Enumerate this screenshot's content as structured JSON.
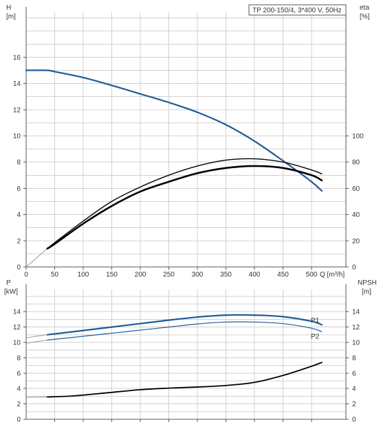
{
  "colors": {
    "blue": "#1f5a96",
    "black": "#000000",
    "grid": "#d0d0d0",
    "light_blue": "#6fa0cc"
  },
  "chart_data": [
    {
      "type": "line",
      "title": "TP 200-150/4, 3*400 V, 50Hz",
      "xlabel": "Q [m³/h]",
      "ylabel_left": [
        "H",
        "[m]"
      ],
      "ylabel_right": [
        "eta",
        "[%]"
      ],
      "xlim": [
        0,
        550
      ],
      "ylim_left": [
        0,
        20
      ],
      "ylim_right": [
        0,
        200
      ],
      "x_ticks": [
        "0",
        "50",
        "100",
        "150",
        "200",
        "250",
        "300",
        "350",
        "400",
        "450",
        "500"
      ],
      "y_left_ticks": [
        "0",
        "2",
        "4",
        "6",
        "8",
        "10",
        "12",
        "14",
        "16"
      ],
      "y_right_ticks": [
        "0",
        "20",
        "40",
        "60",
        "80",
        "100"
      ],
      "grid": true,
      "series": [
        {
          "axis": "left",
          "color": "#1f5a96",
          "width": 2.2,
          "points": [
            [
              0,
              15.0
            ],
            [
              37,
              15.0
            ],
            [
              50,
              14.9
            ],
            [
              100,
              14.45
            ],
            [
              150,
              13.85
            ],
            [
              200,
              13.2
            ],
            [
              250,
              12.55
            ],
            [
              300,
              11.8
            ],
            [
              350,
              10.85
            ],
            [
              400,
              9.6
            ],
            [
              450,
              8.1
            ],
            [
              500,
              6.5
            ],
            [
              518,
              5.8
            ]
          ]
        },
        {
          "axis": "right",
          "color": "#000000",
          "width": 1.4,
          "points": [
            [
              37,
              14
            ],
            [
              50,
              18.5
            ],
            [
              100,
              35
            ],
            [
              150,
              50
            ],
            [
              200,
              61
            ],
            [
              250,
              70
            ],
            [
              300,
              77
            ],
            [
              350,
              81.5
            ],
            [
              400,
              82.5
            ],
            [
              450,
              80
            ],
            [
              500,
              74
            ],
            [
              518,
              71
            ]
          ]
        },
        {
          "axis": "right",
          "color": "#000000",
          "width": 2.6,
          "points": [
            [
              37,
              14
            ],
            [
              50,
              17.5
            ],
            [
              100,
              33
            ],
            [
              150,
              46.5
            ],
            [
              200,
              57.5
            ],
            [
              250,
              65
            ],
            [
              300,
              71.5
            ],
            [
              350,
              75.5
            ],
            [
              400,
              77
            ],
            [
              450,
              75.5
            ],
            [
              500,
              70
            ],
            [
              518,
              66
            ]
          ]
        }
      ],
      "extension_lines": [
        {
          "axis": "left",
          "points": [
            [
              0,
              15.0
            ],
            [
              37,
              15.0
            ]
          ]
        },
        {
          "axis": "right",
          "points": [
            [
              0,
              0
            ],
            [
              37,
              14
            ]
          ]
        }
      ]
    },
    {
      "type": "line",
      "xlabel": "",
      "ylabel_left": [
        "P",
        "[kW]"
      ],
      "ylabel_right": [
        "NPSH",
        "[m]"
      ],
      "xlim": [
        0,
        550
      ],
      "ylim_left": [
        0,
        16
      ],
      "ylim_right": [
        0,
        16
      ],
      "y_left_ticks": [
        "0",
        "2",
        "4",
        "6",
        "8",
        "10",
        "12",
        "14"
      ],
      "y_right_ticks": [
        "0",
        "2",
        "4",
        "6",
        "8",
        "10",
        "12",
        "14"
      ],
      "grid": true,
      "series": [
        {
          "name": "P1",
          "axis": "left",
          "color": "#1f5a96",
          "width": 2.2,
          "points": [
            [
              37,
              11.0
            ],
            [
              100,
              11.55
            ],
            [
              150,
              12.0
            ],
            [
              200,
              12.45
            ],
            [
              250,
              12.9
            ],
            [
              300,
              13.3
            ],
            [
              350,
              13.55
            ],
            [
              400,
              13.55
            ],
            [
              450,
              13.35
            ],
            [
              500,
              12.75
            ],
            [
              518,
              12.3
            ]
          ]
        },
        {
          "name": "P2",
          "axis": "left",
          "color": "#1f5a96",
          "width": 1.2,
          "points": [
            [
              37,
              10.3
            ],
            [
              100,
              10.8
            ],
            [
              150,
              11.2
            ],
            [
              200,
              11.6
            ],
            [
              250,
              12.0
            ],
            [
              300,
              12.4
            ],
            [
              350,
              12.65
            ],
            [
              400,
              12.65
            ],
            [
              450,
              12.45
            ],
            [
              500,
              11.85
            ],
            [
              518,
              11.4
            ]
          ]
        },
        {
          "axis": "right",
          "color": "#000000",
          "width": 1.8,
          "points": [
            [
              37,
              2.9
            ],
            [
              75,
              3.0
            ],
            [
              100,
              3.15
            ],
            [
              150,
              3.5
            ],
            [
              200,
              3.85
            ],
            [
              250,
              4.05
            ],
            [
              300,
              4.2
            ],
            [
              350,
              4.4
            ],
            [
              400,
              4.8
            ],
            [
              450,
              5.7
            ],
            [
              500,
              6.9
            ],
            [
              518,
              7.4
            ]
          ]
        }
      ],
      "extension_lines": [
        {
          "axis": "left",
          "points": [
            [
              0,
              10.6
            ],
            [
              37,
              11.0
            ]
          ]
        },
        {
          "axis": "left",
          "points": [
            [
              0,
              9.9
            ],
            [
              37,
              10.3
            ]
          ]
        },
        {
          "axis": "right",
          "points": [
            [
              0,
              2.85
            ],
            [
              37,
              2.9
            ]
          ]
        }
      ]
    }
  ]
}
